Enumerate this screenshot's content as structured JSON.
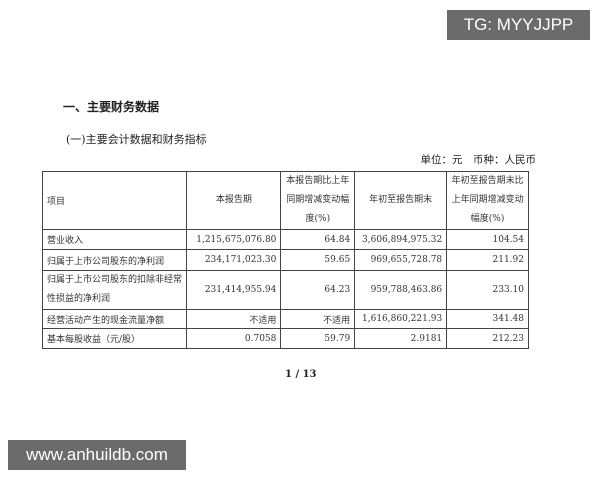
{
  "watermarks": {
    "top": "TG: MYYJJPP",
    "bottom": "www.anhuildb.com"
  },
  "heading": "一、主要财务数据",
  "subheading": "(一)主要会计数据和财务指标",
  "unit_line": "单位：元　币种：人民币",
  "table": {
    "headers": [
      "项目",
      "本报告期",
      "本报告期比上年同期增减变动幅度(%)",
      "年初至报告期末",
      "年初至报告期末比上年同期增减变动幅度(%)"
    ],
    "rows": [
      [
        "营业收入",
        "1,215,675,076.80",
        "64.84",
        "3,606,894,975.32",
        "104.54"
      ],
      [
        "归属于上市公司股东的净利润",
        "234,171,023.30",
        "59.65",
        "969,655,728.78",
        "211.92"
      ],
      [
        "归属于上市公司股东的扣除非经常性损益的净利润",
        "231,414,955.94",
        "64.23",
        "959,788,463.86",
        "233.10"
      ],
      [
        "经营活动产生的现金流量净额",
        "不适用",
        "不适用",
        "1,616,860,221.93",
        "341.48"
      ],
      [
        "基本每股收益（元/股）",
        "0.7058",
        "59.79",
        "2.9181",
        "212.23"
      ]
    ]
  },
  "page_number": "1 / 13"
}
